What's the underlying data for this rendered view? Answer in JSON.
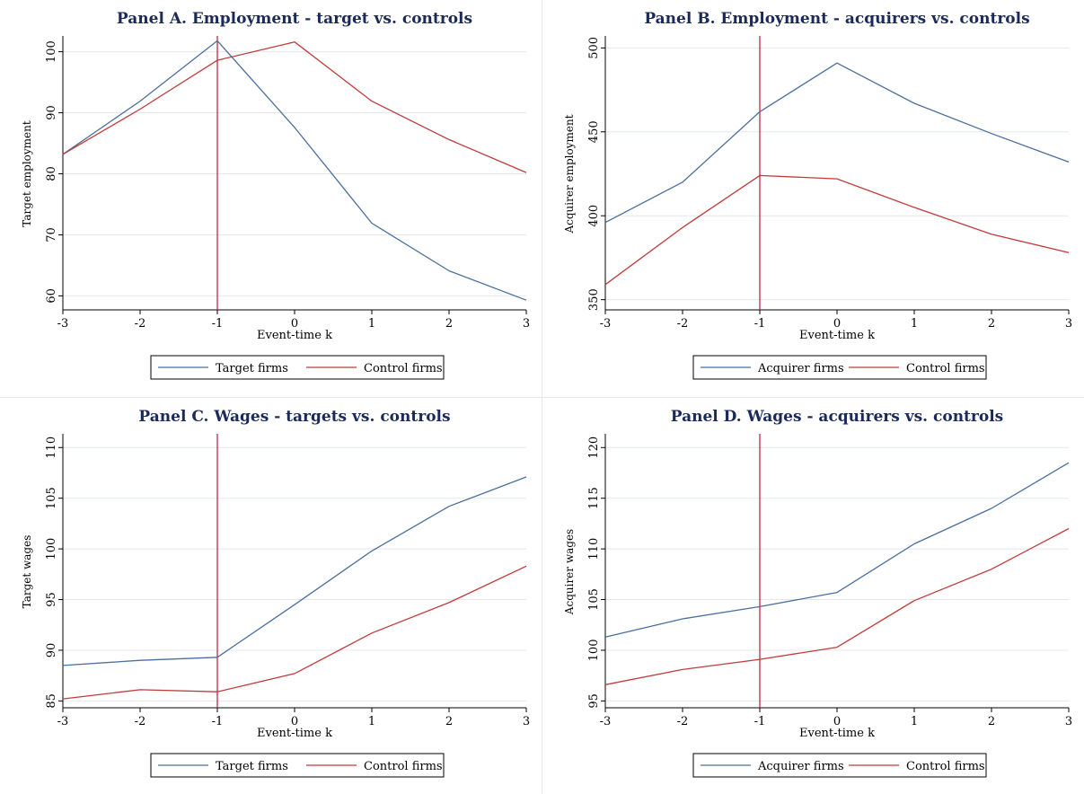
{
  "chart_data": [
    {
      "type": "line",
      "title": "Panel A. Employment - target vs. controls",
      "xlabel": "Event-time k",
      "ylabel": "Target employment",
      "x": [
        -3,
        -2,
        -1,
        0,
        1,
        2,
        3
      ],
      "xlim": [
        -3,
        3
      ],
      "ylim": [
        58,
        102
      ],
      "yticks": [
        60,
        70,
        80,
        90,
        100
      ],
      "vline": -1,
      "legend": "bottom",
      "grid": true,
      "series": [
        {
          "name": "Target firms",
          "color": "#4a6f9c",
          "values": [
            83.2,
            91.9,
            101.8,
            87.6,
            71.9,
            64.1,
            59.3
          ]
        },
        {
          "name": "Control firms",
          "color": "#c23b3b",
          "values": [
            83.2,
            90.6,
            98.6,
            101.6,
            91.9,
            85.6,
            80.2
          ]
        }
      ]
    },
    {
      "type": "line",
      "title": "Panel B. Employment - acquirers vs. controls",
      "xlabel": "Event-time k",
      "ylabel": "Acquirer employment",
      "x": [
        -3,
        -2,
        -1,
        0,
        1,
        2,
        3
      ],
      "xlim": [
        -3,
        3
      ],
      "ylim": [
        345,
        505
      ],
      "yticks": [
        350,
        400,
        450,
        500
      ],
      "vline": -1,
      "legend": "bottom",
      "grid": true,
      "series": [
        {
          "name": "Acquirer firms",
          "color": "#4a6f9c",
          "values": [
            396,
            420,
            462,
            491,
            467,
            449,
            432
          ]
        },
        {
          "name": "Control firms",
          "color": "#c23b3b",
          "values": [
            359,
            393,
            424,
            422,
            405,
            389,
            378
          ]
        }
      ]
    },
    {
      "type": "line",
      "title": "Panel C. Wages - targets vs. controls",
      "xlabel": "Event-time k",
      "ylabel": "Target wages",
      "x": [
        -3,
        -2,
        -1,
        0,
        1,
        2,
        3
      ],
      "xlim": [
        -3,
        3
      ],
      "ylim": [
        84.5,
        111
      ],
      "yticks": [
        85,
        90,
        95,
        100,
        105,
        110
      ],
      "vline": -1,
      "legend": "bottom",
      "grid": true,
      "series": [
        {
          "name": "Target firms",
          "color": "#4a6f9c",
          "values": [
            88.5,
            89.0,
            89.3,
            94.5,
            99.8,
            104.2,
            107.1
          ]
        },
        {
          "name": "Control firms",
          "color": "#c23b3b",
          "values": [
            85.2,
            86.1,
            85.9,
            87.7,
            91.7,
            94.7,
            98.3
          ]
        }
      ]
    },
    {
      "type": "line",
      "title": "Panel D. Wages - acquirers vs. controls",
      "xlabel": "Event-time k",
      "ylabel": "Acquirer wages",
      "x": [
        -3,
        -2,
        -1,
        0,
        1,
        2,
        3
      ],
      "xlim": [
        -3,
        3
      ],
      "ylim": [
        94.5,
        121
      ],
      "yticks": [
        95,
        100,
        105,
        110,
        115,
        120
      ],
      "vline": -1,
      "legend": "bottom",
      "grid": true,
      "series": [
        {
          "name": "Acquirer firms",
          "color": "#4a6f9c",
          "values": [
            101.3,
            103.1,
            104.3,
            105.7,
            110.5,
            114.0,
            118.5
          ]
        },
        {
          "name": "Control firms",
          "color": "#c23b3b",
          "values": [
            96.6,
            98.1,
            99.1,
            100.3,
            104.9,
            108.0,
            112.0
          ]
        }
      ]
    }
  ],
  "style": {
    "title_color": "#1a2a5a",
    "axis_color": "#000000",
    "grid_color": "#e4e8ee",
    "vline_color": "#c2284a"
  }
}
